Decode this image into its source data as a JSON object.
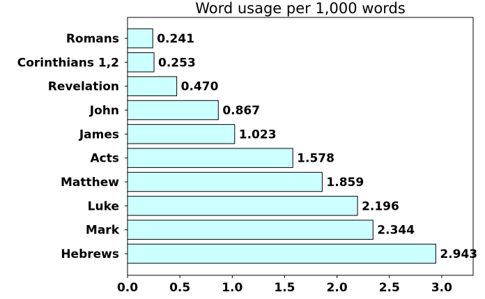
{
  "chart_data": {
    "type": "bar",
    "orientation": "horizontal",
    "title": "Word usage per 1,000 words",
    "xlabel": "",
    "ylabel": "",
    "categories": [
      "Romans",
      "Corinthians 1,2",
      "Revelation",
      "John",
      "James",
      "Acts",
      "Matthew",
      "Luke",
      "Mark",
      "Hebrews"
    ],
    "values": [
      0.241,
      0.253,
      0.47,
      0.867,
      1.023,
      1.578,
      1.859,
      2.196,
      2.344,
      2.943
    ],
    "data_labels": [
      "0.241",
      "0.253",
      "0.470",
      "0.867",
      "1.023",
      "1.578",
      "1.859",
      "2.196",
      "2.344",
      "2.943"
    ],
    "xlim": [
      0,
      3.3
    ],
    "xticks": [
      0.0,
      0.5,
      1.0,
      1.5,
      2.0,
      2.5,
      3.0
    ],
    "xtick_labels": [
      "0.0",
      "0.5",
      "1.0",
      "1.5",
      "2.0",
      "2.5",
      "3.0"
    ],
    "grid": false,
    "bar_color": "#ccffff",
    "edge_color": "#000000"
  }
}
